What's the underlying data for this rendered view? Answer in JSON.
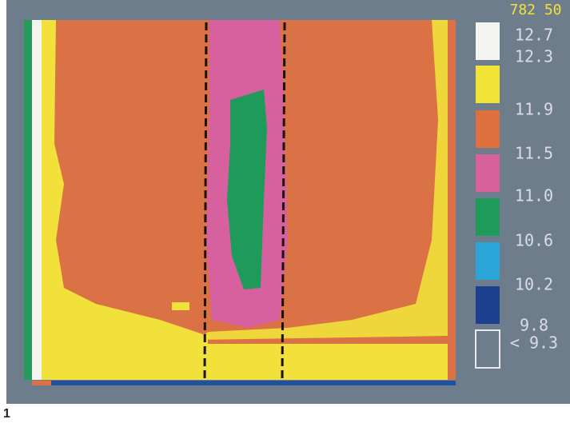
{
  "display": {
    "header": "782 50",
    "legend": [
      {
        "label": "12.7",
        "color": "#f4f4f0"
      },
      {
        "label": "12.3",
        "color": "#f2e437"
      },
      {
        "label": "11.9",
        "color": "#de7040"
      },
      {
        "label": "11.5",
        "color": "#d8609c"
      },
      {
        "label": "11.0",
        "color": "#1e9a5a"
      },
      {
        "label": "10.6",
        "color": "#2aa6d8"
      },
      {
        "label": "10.2",
        "color": "#1c3f8e"
      },
      {
        "label": "9.8",
        "color": null
      },
      {
        "label": "< 9.3",
        "color": null
      }
    ],
    "figure_number": "1"
  }
}
